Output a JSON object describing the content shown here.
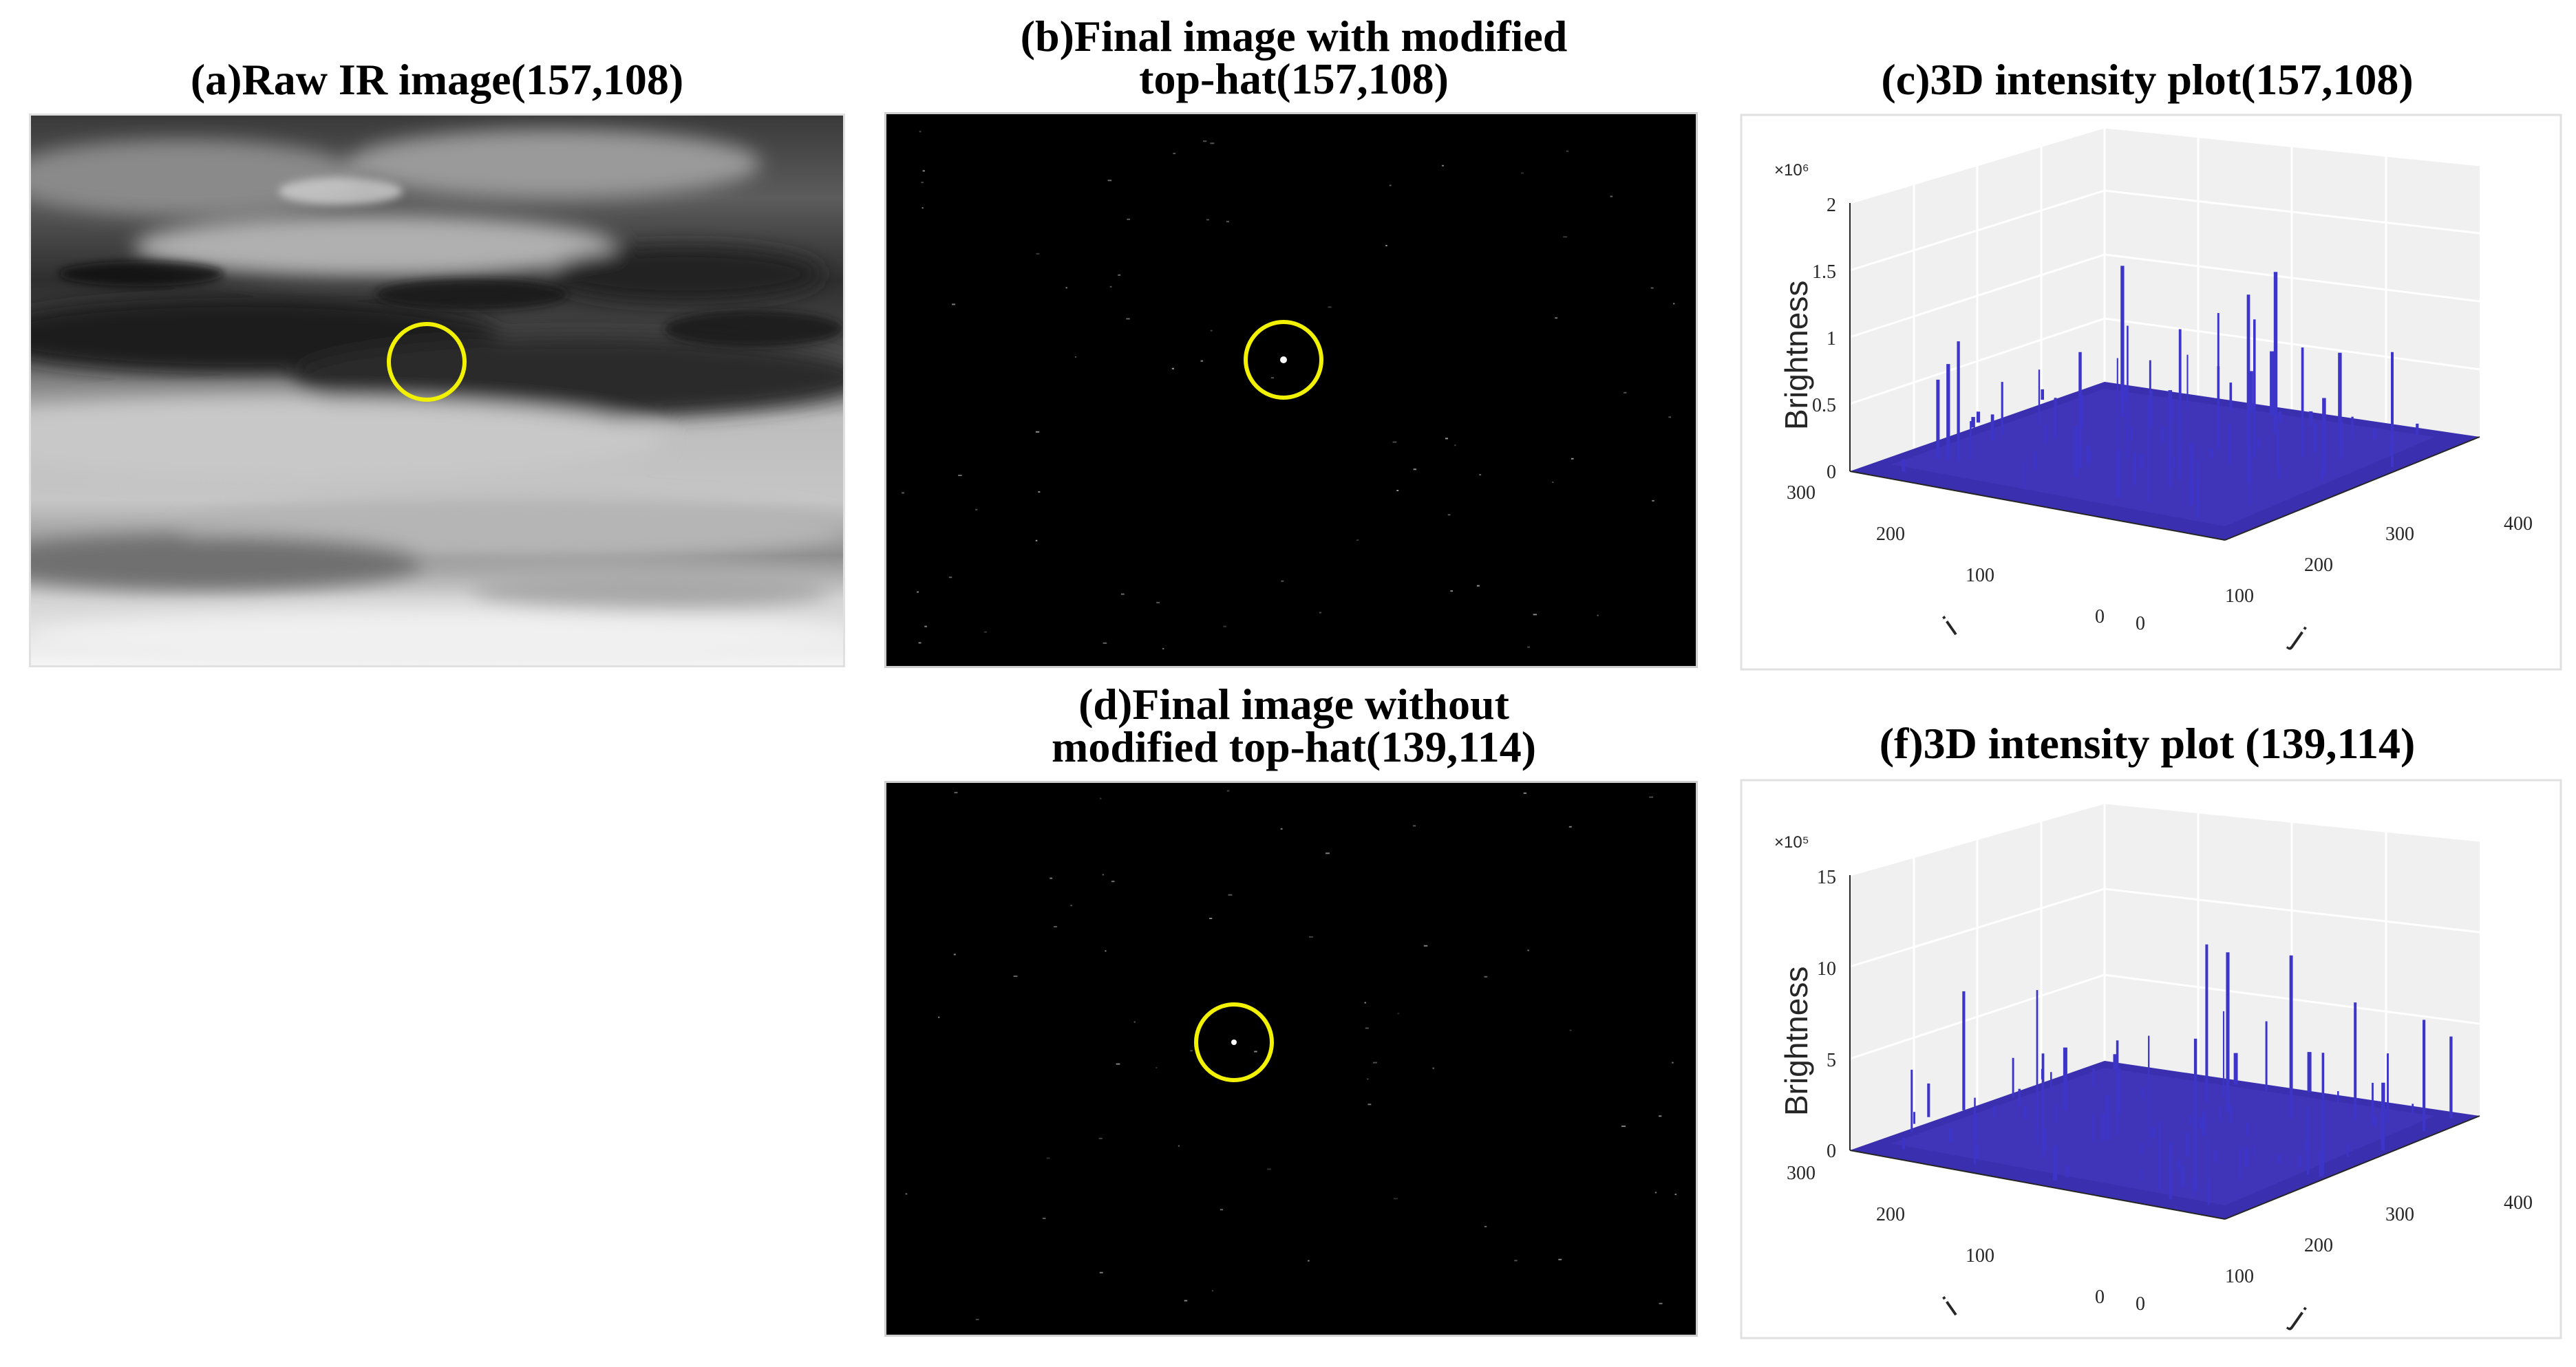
{
  "panels": {
    "a": {
      "caption": "(a)Raw IR image(157,108)",
      "target": {
        "col": 157,
        "row": 108
      }
    },
    "b": {
      "caption_line1": "(b)Final image with modified",
      "caption_line2": "top-hat(157,108)",
      "target": {
        "col": 157,
        "row": 108
      }
    },
    "c": {
      "caption": "(c)3D intensity plot(157,108)",
      "zlabel": "Brightness",
      "xlabel": "i",
      "ylabel": "j",
      "exponent": "×10⁶",
      "z_ticks": [
        "0",
        "0.5",
        "1",
        "1.5",
        "2"
      ],
      "left_ticks": [
        "300",
        "200",
        "100",
        "0"
      ],
      "right_ticks": [
        "0",
        "100",
        "200",
        "300",
        "400"
      ]
    },
    "d": {
      "caption_line1": "(d)Final image without",
      "caption_line2": "modified top-hat(139,114)",
      "target": {
        "col": 139,
        "row": 114
      }
    },
    "f": {
      "caption": "(f)3D intensity plot (139,114)",
      "zlabel": "Brightness",
      "xlabel": "i",
      "ylabel": "j",
      "exponent": "×10⁵",
      "z_ticks": [
        "0",
        "5",
        "10",
        "15"
      ],
      "left_ticks": [
        "300",
        "200",
        "100",
        "0"
      ],
      "right_ticks": [
        "0",
        "100",
        "200",
        "300",
        "400"
      ]
    }
  },
  "colors": {
    "target_circle": "#f2f200",
    "surface": "#3a2fae",
    "spike": "#3c35c8",
    "pane_back": "#f0f0f0",
    "grid": "#ffffff"
  }
}
